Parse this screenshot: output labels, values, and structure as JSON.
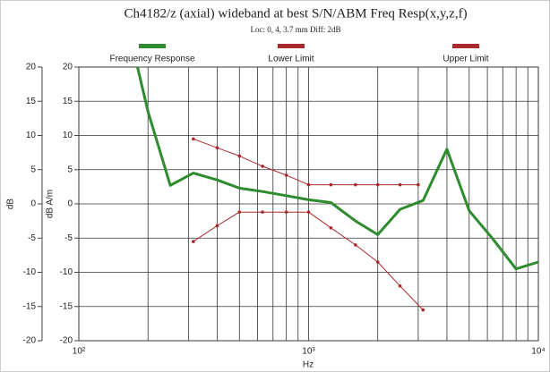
{
  "chart_data": {
    "type": "line",
    "title": "Ch4182/z (axial) wideband at best S/N/ABM Freq Resp(x,y,z,f)",
    "subtitle": "Loc: 0, 4, 3.7 mm Diff: 2dB",
    "x_label": "Hz",
    "y_label": "dB",
    "y2_label": "dB A/m",
    "log_x": true,
    "grid": true,
    "xlim": [
      100,
      10000
    ],
    "xticks": [
      {
        "value": 100,
        "label": "10²"
      },
      {
        "value": 1000,
        "label": "10³"
      },
      {
        "value": 10000,
        "label": "10⁴"
      }
    ],
    "xminor_ticks": [
      200,
      300,
      400,
      500,
      600,
      700,
      800,
      900,
      2000,
      3000,
      4000,
      5000,
      6000,
      7000,
      8000,
      9000
    ],
    "ylim": [
      -20,
      20
    ],
    "yticks": [
      -20,
      -15,
      -10,
      -5,
      0,
      5,
      10,
      15,
      20
    ],
    "y2lim": [
      -20,
      20
    ],
    "y2ticks": [
      -20,
      -15,
      -10,
      -5,
      0,
      5,
      10,
      15,
      20
    ],
    "series": [
      {
        "name": "Frequency Response",
        "color": "#2e8b2e",
        "axis": "y2",
        "x": [
          180,
          200,
          250,
          315,
          400,
          500,
          630,
          800,
          1000,
          1250,
          1600,
          2000,
          2500,
          3150,
          4000,
          5000,
          6300,
          8000,
          10000
        ],
        "values": [
          20,
          13.5,
          2.7,
          4.5,
          3.5,
          2.3,
          1.8,
          1.2,
          0.6,
          0.2,
          -2.5,
          -4.5,
          -0.8,
          0.5,
          8,
          -1,
          -5,
          -9.5,
          -8.5
        ]
      },
      {
        "name": "Lower Limit",
        "color": "#a8282c",
        "axis": "y2",
        "x": [
          315,
          400,
          500,
          630,
          800,
          1000,
          1250,
          1600,
          2000,
          2500,
          3150
        ],
        "values": [
          -5.5,
          -3.2,
          -1.2,
          -1.2,
          -1.2,
          -1.2,
          -3.5,
          -6,
          -8.5,
          -12,
          -15.5
        ]
      },
      {
        "name": "Upper Limit",
        "color": "#a8282c",
        "axis": "y2",
        "x": [
          315,
          400,
          500,
          630,
          800,
          1000,
          1250,
          1600,
          2000,
          2500,
          3000
        ],
        "values": [
          9.5,
          8.2,
          7,
          5.5,
          4.2,
          2.8,
          2.8,
          2.8,
          2.8,
          2.8,
          2.8
        ]
      }
    ]
  }
}
